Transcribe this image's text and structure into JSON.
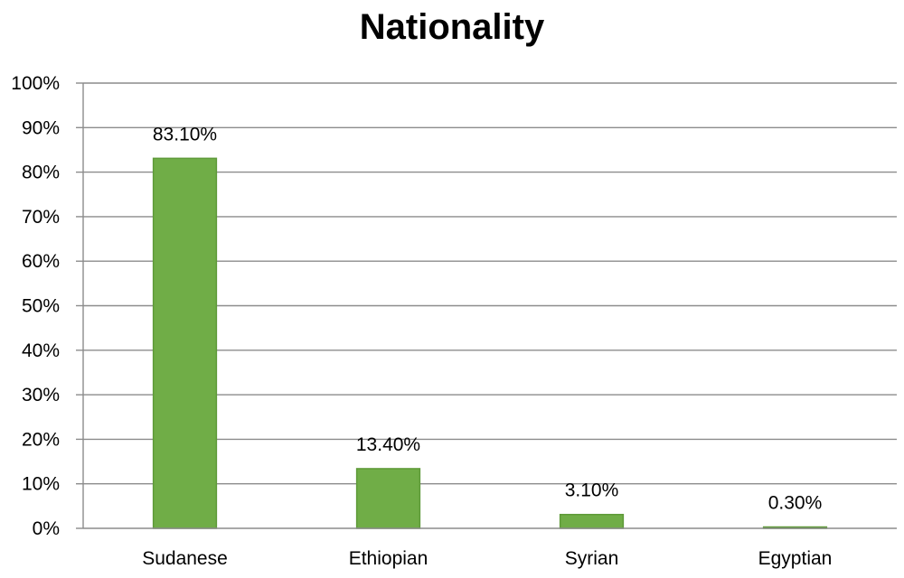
{
  "chart_data": {
    "type": "bar",
    "title": "Nationality",
    "xlabel": "",
    "ylabel": "",
    "categories": [
      "Sudanese",
      "Ethiopian",
      "Syrian",
      "Egyptian"
    ],
    "values": [
      83.1,
      13.4,
      3.1,
      0.3
    ],
    "data_labels": [
      "83.10%",
      "13.40%",
      "3.10%",
      "0.30%"
    ],
    "ylim": [
      0,
      100
    ],
    "y_ticks": [
      0,
      10,
      20,
      30,
      40,
      50,
      60,
      70,
      80,
      90,
      100
    ],
    "y_tick_labels": [
      "0%",
      "10%",
      "20%",
      "30%",
      "40%",
      "50%",
      "60%",
      "70%",
      "80%",
      "90%",
      "100%"
    ],
    "grid": true,
    "legend": "none",
    "colors": {
      "bar_fill": "#70AD47",
      "bar_stroke": "#5E9A38",
      "grid": "#8C8C8C",
      "axis": "#8C8C8C"
    }
  }
}
